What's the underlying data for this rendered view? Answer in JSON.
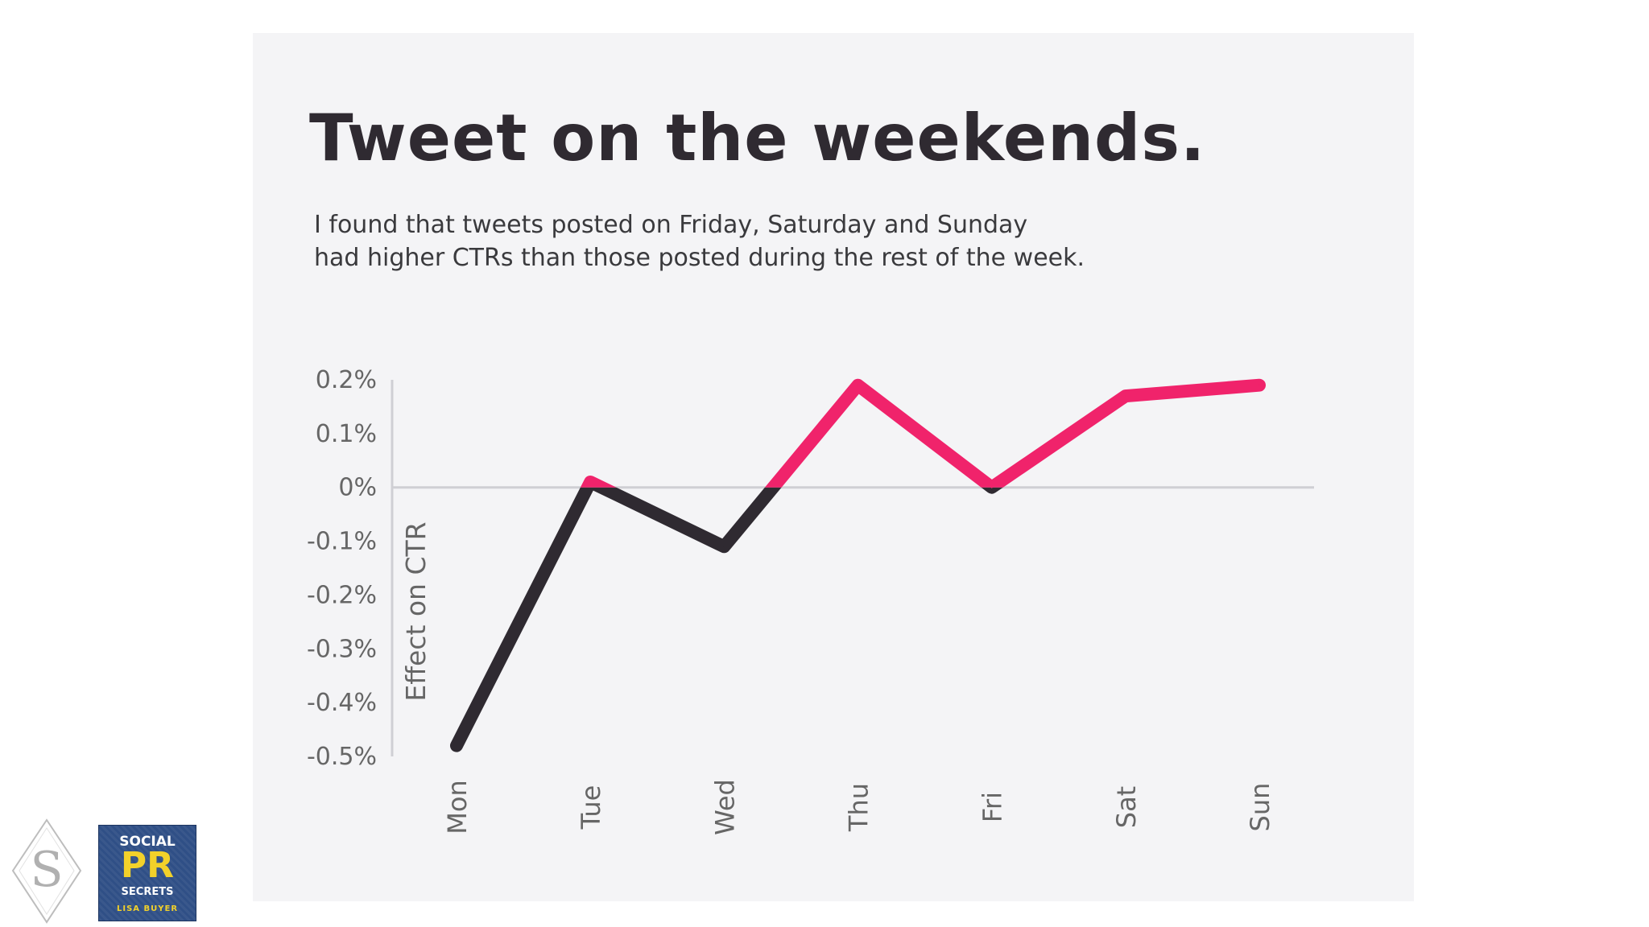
{
  "title": "Tweet on the weekends.",
  "subtitle_lines": [
    "I found that tweets posted on Friday, Saturday and Sunday",
    "had higher CTRs than those posted during the rest of the week."
  ],
  "colors": {
    "positive": "#f0236b",
    "negative": "#2f2a31",
    "background": "#f4f4f6",
    "axis": "#cfcfd4"
  },
  "chart_data": {
    "type": "line",
    "categories": [
      "Mon",
      "Tue",
      "Wed",
      "Thu",
      "Fri",
      "Sat",
      "Sun"
    ],
    "values": [
      -0.48,
      0.01,
      -0.11,
      0.19,
      0.0,
      0.17,
      0.19
    ],
    "ylabel": "Effect on CTR",
    "y_ticks": [
      "0.2%",
      "0.1%",
      "0%",
      "-0.1%",
      "-0.2%",
      "-0.3%",
      "-0.4%",
      "-0.5%"
    ],
    "y_tick_values": [
      0.2,
      0.1,
      0,
      -0.1,
      -0.2,
      -0.3,
      -0.4,
      -0.5
    ],
    "ylim": [
      -0.5,
      0.2
    ],
    "grid": false
  },
  "branding": {
    "logo_letter": "S",
    "icon": "diamond-s-logo-icon",
    "book": {
      "line1": "SOCIAL",
      "line2": "PR",
      "line3": "SECRETS",
      "author": "LISA BUYER"
    }
  }
}
